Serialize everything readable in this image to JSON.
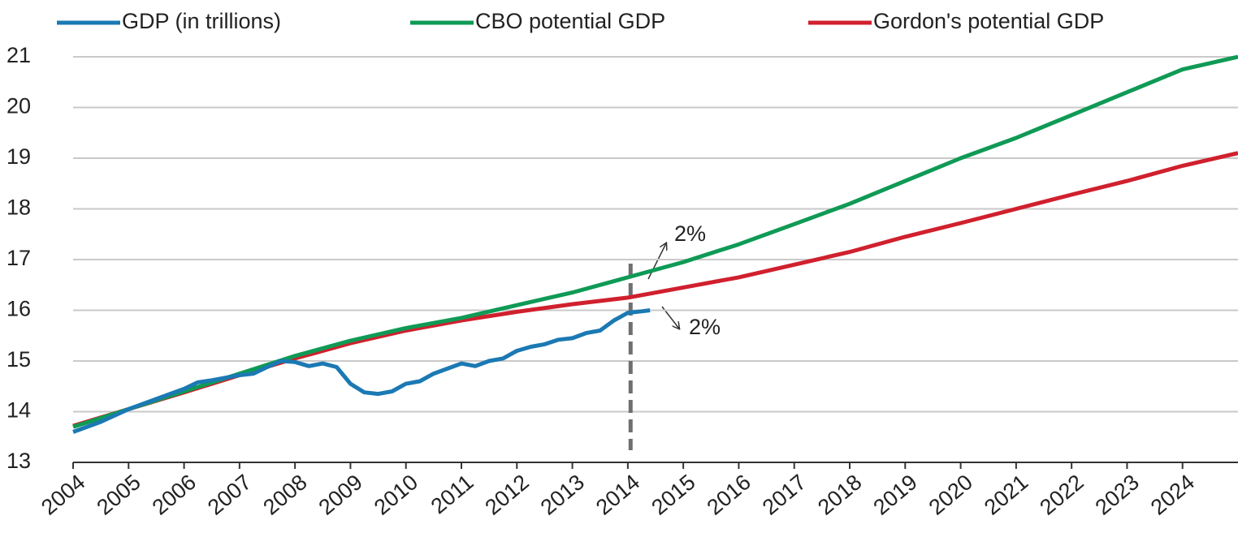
{
  "chart_data": {
    "type": "line",
    "legend": "top",
    "grid": true,
    "xlim": [
      2004,
      2025
    ],
    "ylim": [
      13,
      21
    ],
    "xticks": [
      2004,
      2005,
      2006,
      2007,
      2008,
      2009,
      2010,
      2011,
      2012,
      2013,
      2014,
      2015,
      2016,
      2017,
      2018,
      2019,
      2020,
      2021,
      2022,
      2023,
      2024
    ],
    "yticks": [
      13,
      14,
      15,
      16,
      17,
      18,
      19,
      20,
      21
    ],
    "reference_line_x": 2014.05,
    "annotations": [
      {
        "text": "2%"
      },
      {
        "text": "2%"
      }
    ],
    "series": [
      {
        "name": "GDP (in trillions)",
        "color": "#1b79b3",
        "x": [
          2004.0,
          2004.5,
          2005.0,
          2005.5,
          2006.0,
          2006.25,
          2006.5,
          2007.0,
          2007.25,
          2007.5,
          2007.75,
          2008.0,
          2008.25,
          2008.5,
          2008.75,
          2009.0,
          2009.25,
          2009.5,
          2009.75,
          2010.0,
          2010.25,
          2010.5,
          2010.75,
          2011.0,
          2011.25,
          2011.5,
          2011.75,
          2012.0,
          2012.25,
          2012.5,
          2012.75,
          2013.0,
          2013.25,
          2013.5,
          2013.75,
          2014.0,
          2014.25,
          2014.4
        ],
        "values": [
          13.6,
          13.8,
          14.05,
          14.25,
          14.45,
          14.58,
          14.62,
          14.72,
          14.75,
          14.88,
          15.0,
          14.98,
          14.9,
          14.95,
          14.88,
          14.55,
          14.38,
          14.35,
          14.4,
          14.55,
          14.6,
          14.75,
          14.85,
          14.95,
          14.9,
          15.0,
          15.05,
          15.2,
          15.28,
          15.33,
          15.42,
          15.45,
          15.55,
          15.6,
          15.8,
          15.95,
          15.98,
          16.0
        ]
      },
      {
        "name": "CBO potential GDP",
        "color": "#0f9a55",
        "x": [
          2004,
          2005,
          2006,
          2007,
          2008,
          2009,
          2010,
          2011,
          2012,
          2013,
          2014,
          2015,
          2016,
          2017,
          2018,
          2019,
          2020,
          2021,
          2022,
          2023,
          2024,
          2025
        ],
        "values": [
          13.7,
          14.05,
          14.4,
          14.75,
          15.1,
          15.4,
          15.65,
          15.85,
          16.1,
          16.35,
          16.65,
          16.95,
          17.3,
          17.7,
          18.1,
          18.55,
          19.0,
          19.4,
          19.85,
          20.3,
          20.75,
          21.0
        ]
      },
      {
        "name": "Gordon's potential GDP",
        "color": "#d0202e",
        "x": [
          2004,
          2005,
          2006,
          2007,
          2008,
          2009,
          2010,
          2011,
          2012,
          2013,
          2014,
          2015,
          2016,
          2017,
          2018,
          2019,
          2020,
          2021,
          2022,
          2023,
          2024,
          2025
        ],
        "values": [
          13.72,
          14.05,
          14.38,
          14.72,
          15.05,
          15.35,
          15.6,
          15.8,
          15.97,
          16.12,
          16.25,
          16.45,
          16.65,
          16.9,
          17.15,
          17.45,
          17.72,
          18.0,
          18.28,
          18.55,
          18.85,
          19.1
        ]
      }
    ]
  }
}
